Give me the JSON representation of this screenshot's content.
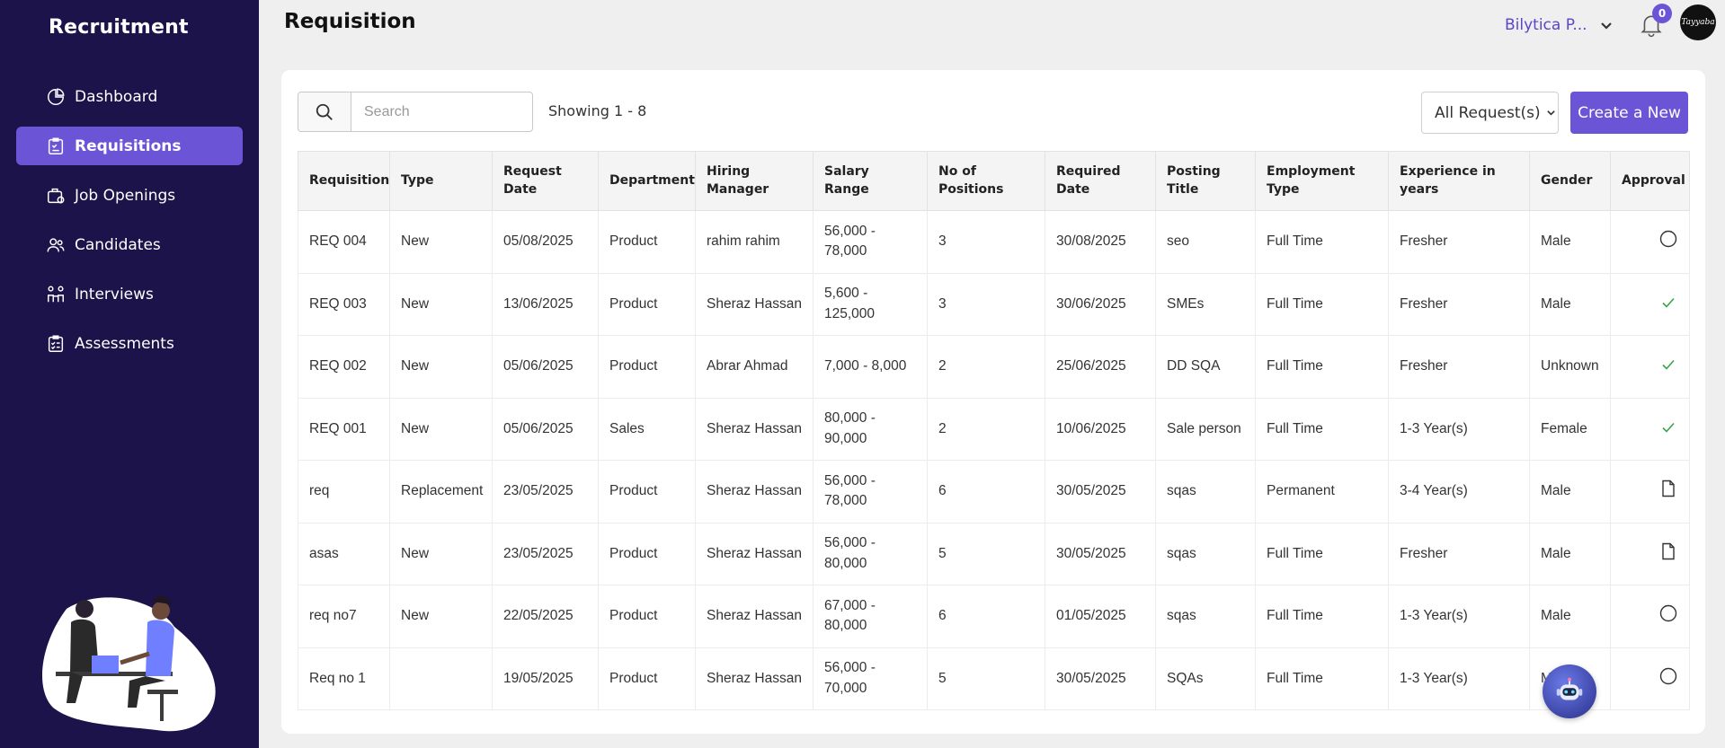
{
  "sidebar": {
    "brand": "Recruitment",
    "items": [
      {
        "label": "Dashboard",
        "icon": "pie-chart-icon",
        "active": false
      },
      {
        "label": "Requisitions",
        "icon": "clipboard-icon",
        "active": true
      },
      {
        "label": "Job Openings",
        "icon": "briefcase-icon",
        "active": false
      },
      {
        "label": "Candidates",
        "icon": "users-icon",
        "active": false
      },
      {
        "label": "Interviews",
        "icon": "interview-icon",
        "active": false
      },
      {
        "label": "Assessments",
        "icon": "checklist-icon",
        "active": false
      }
    ]
  },
  "header": {
    "title": "Requisition",
    "company": "Bilytica P...",
    "notifications_count": "0",
    "avatar_text": "Tayyaba"
  },
  "toolbar": {
    "search_placeholder": "Search",
    "showing": "Showing 1 - 8",
    "filter_label": "All Request(s)",
    "create_label": "Create a New"
  },
  "table": {
    "headers": [
      "Requisition",
      "Type",
      "Request Date",
      "Department",
      "Hiring Manager",
      "Salary  Range",
      "No  of Positions",
      "Required Date",
      "Posting Title",
      "Employment Type",
      "Experience  in years",
      "Gender",
      "Approval"
    ],
    "rows": [
      {
        "requisition": "REQ 004",
        "type": "New",
        "request_date": "05/08/2025",
        "department": "Product",
        "manager": "rahim rahim",
        "salary": "56,000 - 78,000",
        "positions": "3",
        "required_date": "30/08/2025",
        "title": "seo",
        "employment": "Full Time",
        "experience": "Fresher",
        "gender": "Male",
        "approval": "pending"
      },
      {
        "requisition": "REQ 003",
        "type": "New",
        "request_date": "13/06/2025",
        "department": "Product",
        "manager": "Sheraz Hassan",
        "salary": "5,600 - 125,000",
        "positions": "3",
        "required_date": "30/06/2025",
        "title": "SMEs",
        "employment": "Full Time",
        "experience": "Fresher",
        "gender": "Male",
        "approval": "approved"
      },
      {
        "requisition": "REQ 002",
        "type": "New",
        "request_date": "05/06/2025",
        "department": "Product",
        "manager": "Abrar Ahmad",
        "salary": "7,000 - 8,000",
        "positions": "2",
        "required_date": "25/06/2025",
        "title": "DD SQA",
        "employment": "Full Time",
        "experience": "Fresher",
        "gender": "Unknown",
        "approval": "approved"
      },
      {
        "requisition": "REQ 001",
        "type": "New",
        "request_date": "05/06/2025",
        "department": "Sales",
        "manager": "Sheraz Hassan",
        "salary": "80,000 - 90,000",
        "positions": "2",
        "required_date": "10/06/2025",
        "title": "Sale person",
        "employment": "Full Time",
        "experience": "1-3 Year(s)",
        "gender": "Female",
        "approval": "approved"
      },
      {
        "requisition": "req",
        "type": "Replacement",
        "request_date": "23/05/2025",
        "department": "Product",
        "manager": "Sheraz Hassan",
        "salary": "56,000 - 78,000",
        "positions": "6",
        "required_date": "30/05/2025",
        "title": "sqas",
        "employment": "Permanent",
        "experience": "3-4 Year(s)",
        "gender": "Male",
        "approval": "draft"
      },
      {
        "requisition": "asas",
        "type": "New",
        "request_date": "23/05/2025",
        "department": "Product",
        "manager": "Sheraz Hassan",
        "salary": "56,000 - 80,000",
        "positions": "5",
        "required_date": "30/05/2025",
        "title": "sqas",
        "employment": "Full Time",
        "experience": "Fresher",
        "gender": "Male",
        "approval": "draft"
      },
      {
        "requisition": "req no7",
        "type": "New",
        "request_date": "22/05/2025",
        "department": "Product",
        "manager": "Sheraz Hassan",
        "salary": "67,000 - 80,000",
        "positions": "6",
        "required_date": "01/05/2025",
        "title": "sqas",
        "employment": "Full Time",
        "experience": "1-3 Year(s)",
        "gender": "Male",
        "approval": "pending"
      },
      {
        "requisition": "Req no 1",
        "type": "",
        "request_date": "19/05/2025",
        "department": "Product",
        "manager": "Sheraz Hassan",
        "salary": "56,000 - 70,000",
        "positions": "5",
        "required_date": "30/05/2025",
        "title": "SQAs",
        "employment": "Full Time",
        "experience": "1-3 Year(s)",
        "gender": "Male",
        "approval": "pending"
      }
    ]
  },
  "colors": {
    "sidebar_bg": "#1b1349",
    "accent": "#6b55d6",
    "approved": "#3aa34a"
  }
}
